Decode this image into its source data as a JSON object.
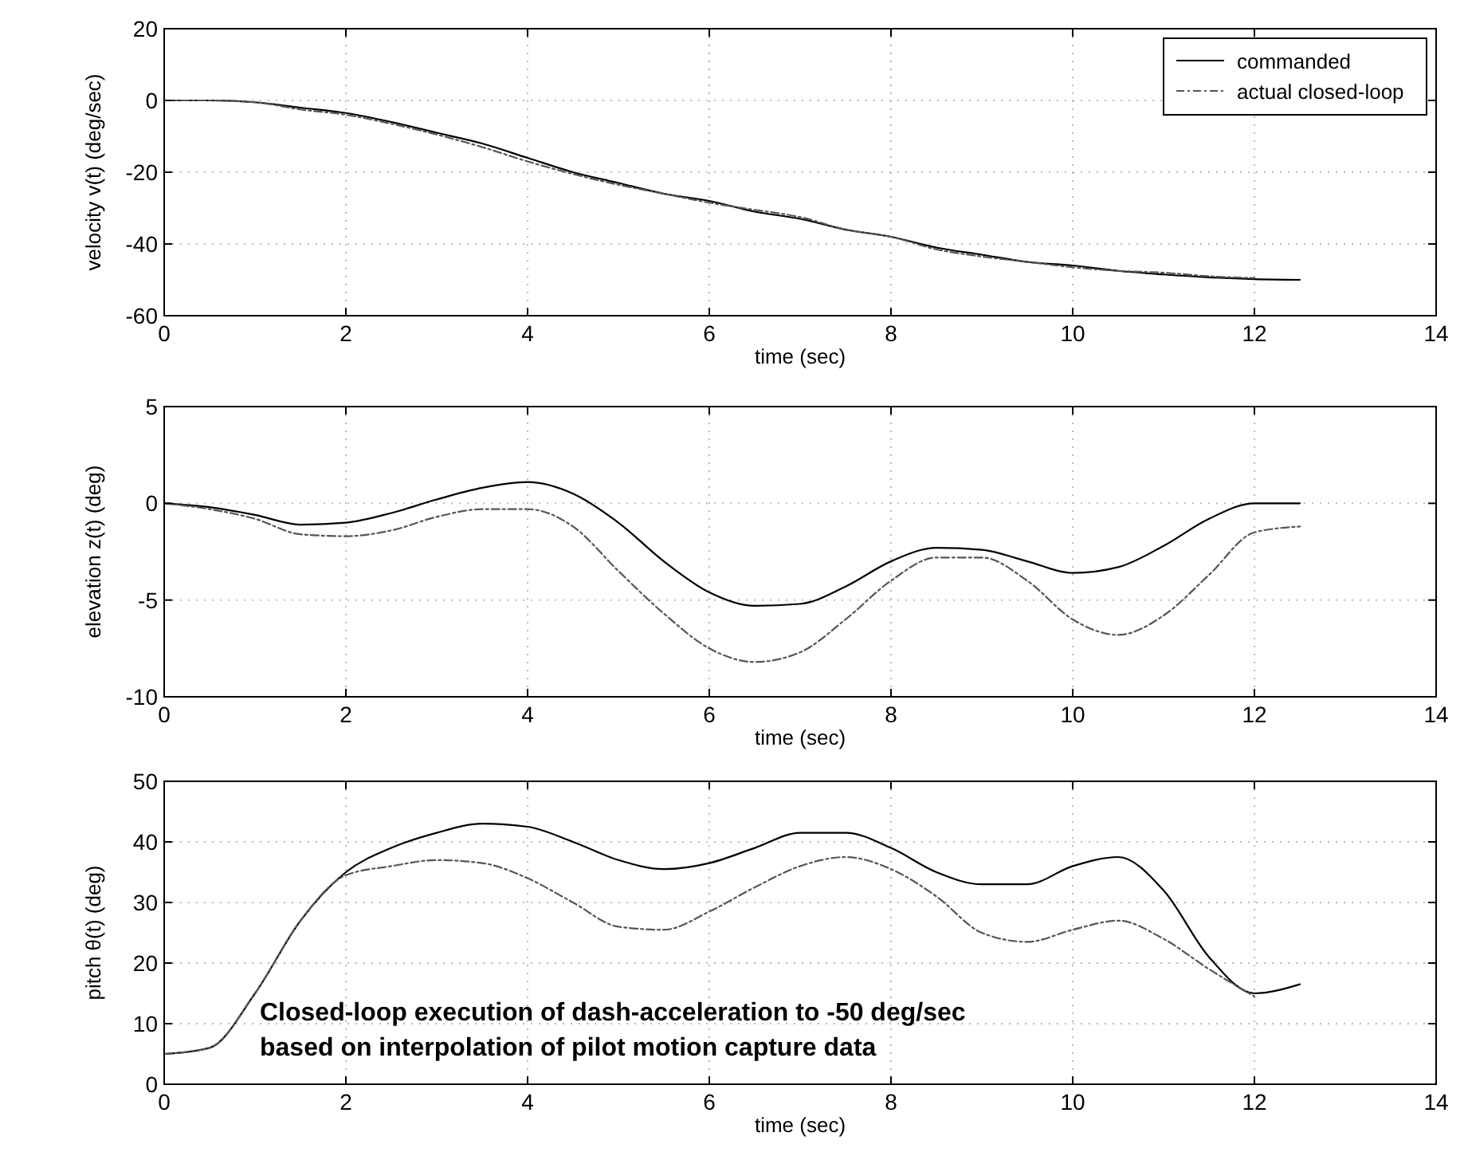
{
  "chart_data": [
    {
      "type": "line",
      "ylabel": "velocity v(t) (deg/sec)",
      "xlabel": "time (sec)",
      "x": [
        0,
        0.5,
        1,
        1.5,
        2,
        2.5,
        3,
        3.5,
        4,
        4.5,
        5,
        5.5,
        6,
        6.5,
        7,
        7.5,
        8,
        8.5,
        9,
        9.5,
        10,
        10.5,
        11,
        11.5,
        12,
        12.5
      ],
      "xlim": [
        0,
        14
      ],
      "xticks": [
        0,
        2,
        4,
        6,
        8,
        10,
        12,
        14
      ],
      "ylim": [
        -60,
        20
      ],
      "yticks": [
        -60,
        -40,
        -20,
        0,
        20
      ],
      "grid": true,
      "legend": "top right",
      "series": [
        {
          "name": "commanded",
          "color": "#000000",
          "line_style": "solid",
          "values": [
            0,
            0,
            -0.5,
            -2,
            -3.5,
            -6,
            -9,
            -12,
            -16,
            -20,
            -23,
            -26,
            -28,
            -31,
            -33,
            -36,
            -38,
            -41,
            -43,
            -45,
            -46,
            -47.5,
            -48.5,
            -49.3,
            -49.8,
            -50
          ]
        },
        {
          "name": "actual closed-loop",
          "color": "#555555",
          "line_style": "dashed",
          "values": [
            0,
            0,
            -0.5,
            -2.5,
            -4,
            -6.5,
            -9.5,
            -13,
            -17,
            -20.5,
            -23.5,
            -26,
            -28.5,
            -30.5,
            -32.5,
            -36,
            -38,
            -41.5,
            -43.5,
            -45,
            -46.5,
            -47.5,
            -48,
            -49,
            -49.5,
            null
          ]
        }
      ]
    },
    {
      "type": "line",
      "ylabel": "elevation z(t) (deg)",
      "xlabel": "time (sec)",
      "x": [
        0,
        0.5,
        1,
        1.5,
        2,
        2.5,
        3,
        3.5,
        4,
        4.5,
        5,
        5.5,
        6,
        6.5,
        7,
        7.5,
        8,
        8.5,
        9,
        9.5,
        10,
        10.5,
        11,
        11.5,
        12,
        12.5
      ],
      "xlim": [
        0,
        14
      ],
      "xticks": [
        0,
        2,
        4,
        6,
        8,
        10,
        12,
        14
      ],
      "ylim": [
        -10,
        5
      ],
      "yticks": [
        -10,
        -5,
        0,
        5
      ],
      "grid": true,
      "series": [
        {
          "color": "#000000",
          "line_style": "solid",
          "values": [
            0,
            -0.2,
            -0.6,
            -1.1,
            -1,
            -0.5,
            0.2,
            0.8,
            1.1,
            0.5,
            -1,
            -3,
            -4.6,
            -5.3,
            -5.2,
            -4.3,
            -3,
            -2.3,
            -2.4,
            -3,
            -3.6,
            -3.3,
            -2.2,
            -0.8,
            0,
            0
          ]
        },
        {
          "color": "#555555",
          "line_style": "dashed",
          "values": [
            0,
            -0.3,
            -0.8,
            -1.6,
            -1.7,
            -1.4,
            -0.7,
            -0.3,
            -0.3,
            -1.2,
            -3.5,
            -5.7,
            -7.5,
            -8.2,
            -7.7,
            -6,
            -4,
            -2.8,
            -2.8,
            -4,
            -6,
            -6.8,
            -5.8,
            -3.7,
            -1.5,
            -1.2
          ]
        }
      ]
    },
    {
      "type": "line",
      "ylabel": "pitch θ(t) (deg)",
      "xlabel": "time (sec)",
      "x": [
        0,
        0.5,
        1,
        1.5,
        2,
        2.5,
        3,
        3.5,
        4,
        4.5,
        5,
        5.5,
        6,
        6.5,
        7,
        7.5,
        8,
        8.5,
        9,
        9.5,
        10,
        10.5,
        11,
        11.5,
        12,
        12.5
      ],
      "xlim": [
        0,
        14
      ],
      "xticks": [
        0,
        2,
        4,
        6,
        8,
        10,
        12,
        14
      ],
      "ylim": [
        0,
        50
      ],
      "yticks": [
        0,
        10,
        20,
        30,
        40,
        50
      ],
      "grid": true,
      "annotations": [
        "Closed-loop execution of dash-acceleration to -50 deg/sec",
        "based on interpolation of pilot motion capture data"
      ],
      "series": [
        {
          "color": "#000000",
          "line_style": "solid",
          "values": [
            5,
            6,
            15,
            27,
            35,
            39,
            41.5,
            43,
            42.5,
            40,
            37,
            35.5,
            36.5,
            39,
            41.5,
            41.5,
            39,
            35,
            33,
            33,
            36,
            37.5,
            32,
            21,
            15,
            16.5
          ]
        },
        {
          "color": "#555555",
          "line_style": "dashed",
          "values": [
            5,
            6,
            15,
            27,
            34.5,
            36,
            37,
            36.5,
            34,
            30,
            26,
            25.5,
            28.5,
            32.5,
            36,
            37.5,
            35.5,
            31,
            25,
            23.5,
            25.5,
            27,
            24,
            19,
            14.5,
            null
          ]
        }
      ]
    }
  ]
}
